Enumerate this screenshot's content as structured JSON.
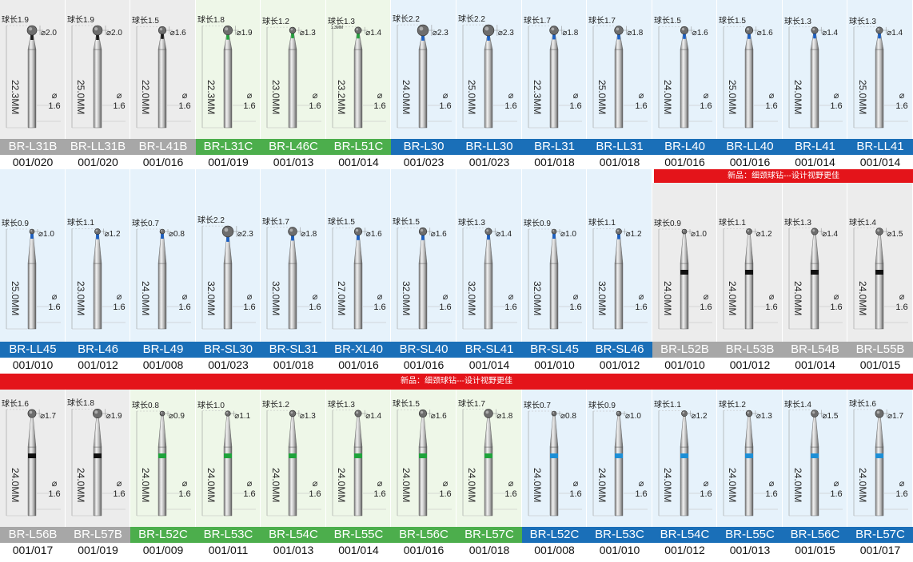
{
  "colors": {
    "gray": "#a7a7a7",
    "green": "#4cae4c",
    "blue": "#1a6fb8",
    "red_banner": "#e4141a",
    "black_ring": "#111111"
  },
  "rows": [
    {
      "items": [
        {
          "name": "BR-L31B",
          "code": "001/020",
          "group": "gray",
          "ball_len": "球长1.9",
          "head_d": "⌀2.0",
          "shank_d": "⌀ 1.6",
          "length": "22.3MM",
          "ring": "none"
        },
        {
          "name": "BR-LL31B",
          "code": "001/020",
          "group": "gray",
          "ball_len": "球长1.9",
          "head_d": "⌀2.0",
          "shank_d": "⌀ 1.6",
          "length": "25.0MM",
          "ring": "none"
        },
        {
          "name": "BR-L41B",
          "code": "001/016",
          "group": "gray",
          "ball_len": "球长1.5",
          "head_d": "⌀1.6",
          "shank_d": "⌀ 1.6",
          "length": "22.0MM",
          "ring": "none"
        },
        {
          "name": "BR-L31C",
          "code": "001/019",
          "group": "green",
          "ball_len": "球长1.8",
          "head_d": "⌀1.9",
          "shank_d": "⌀ 1.6",
          "length": "22.3MM",
          "ring": "none"
        },
        {
          "name": "BR-L46C",
          "code": "001/013",
          "group": "green",
          "ball_len": "球长1.2",
          "head_d": "⌀1.3",
          "shank_d": "⌀ 1.6",
          "length": "23.0MM",
          "ring": "none"
        },
        {
          "name": "BR-L51C",
          "code": "001/014",
          "group": "green",
          "ball_len": "球长1.3",
          "head_d": "⌀1.4",
          "shank_d": "⌀ 1.6",
          "length": "23.2MM",
          "ring": "none",
          "note": "1.3MM"
        },
        {
          "name": "BR-L30",
          "code": "001/023",
          "group": "blue",
          "ball_len": "球长2.2",
          "head_d": "⌀2.3",
          "shank_d": "⌀ 1.6",
          "length": "24.0MM",
          "ring": "none"
        },
        {
          "name": "BR-LL30",
          "code": "001/023",
          "group": "blue",
          "ball_len": "球长2.2",
          "head_d": "⌀2.3",
          "shank_d": "⌀ 1.6",
          "length": "25.0MM",
          "ring": "none"
        },
        {
          "name": "BR-L31",
          "code": "001/018",
          "group": "blue",
          "ball_len": "球长1.7",
          "head_d": "⌀1.8",
          "shank_d": "⌀ 1.6",
          "length": "22.3MM",
          "ring": "none"
        },
        {
          "name": "BR-LL31",
          "code": "001/018",
          "group": "blue",
          "ball_len": "球长1.7",
          "head_d": "⌀1.8",
          "shank_d": "⌀ 1.6",
          "length": "25.0MM",
          "ring": "none"
        },
        {
          "name": "BR-L40",
          "code": "001/016",
          "group": "blue",
          "ball_len": "球长1.5",
          "head_d": "⌀1.6",
          "shank_d": "⌀ 1.6",
          "length": "24.0MM",
          "ring": "none"
        },
        {
          "name": "BR-LL40",
          "code": "001/016",
          "group": "blue",
          "ball_len": "球长1.5",
          "head_d": "⌀1.6",
          "shank_d": "⌀ 1.6",
          "length": "25.0MM",
          "ring": "none"
        },
        {
          "name": "BR-L41",
          "code": "001/014",
          "group": "blue",
          "ball_len": "球长1.3",
          "head_d": "⌀1.4",
          "shank_d": "⌀ 1.6",
          "length": "24.0MM",
          "ring": "none"
        },
        {
          "name": "BR-LL41",
          "code": "001/014",
          "group": "blue",
          "ball_len": "球长1.3",
          "head_d": "⌀1.4",
          "shank_d": "⌀ 1.6",
          "length": "25.0MM",
          "ring": "none"
        }
      ]
    },
    {
      "items": [
        {
          "name": "BR-LL45",
          "code": "001/010",
          "group": "blue",
          "ball_len": "球长0.9",
          "head_d": "⌀1.0",
          "shank_d": "⌀ 1.6",
          "length": "25.0MM",
          "ring": "none"
        },
        {
          "name": "BR-L46",
          "code": "001/012",
          "group": "blue",
          "ball_len": "球长1.1",
          "head_d": "⌀1.2",
          "shank_d": "⌀ 1.6",
          "length": "23.0MM",
          "ring": "none"
        },
        {
          "name": "BR-L49",
          "code": "001/008",
          "group": "blue",
          "ball_len": "球长0.7",
          "head_d": "⌀0.8",
          "shank_d": "⌀ 1.6",
          "length": "24.0MM",
          "ring": "none"
        },
        {
          "name": "BR-SL30",
          "code": "001/023",
          "group": "blue",
          "ball_len": "球长2.2",
          "head_d": "⌀2.3",
          "shank_d": "⌀ 1.6",
          "length": "32.0MM",
          "ring": "none"
        },
        {
          "name": "BR-SL31",
          "code": "001/018",
          "group": "blue",
          "ball_len": "球长1.7",
          "head_d": "⌀1.8",
          "shank_d": "⌀ 1.6",
          "length": "32.0MM",
          "ring": "none"
        },
        {
          "name": "BR-XL40",
          "code": "001/016",
          "group": "blue",
          "ball_len": "球长1.5",
          "head_d": "⌀1.6",
          "shank_d": "⌀ 1.6",
          "length": "27.0MM",
          "ring": "none"
        },
        {
          "name": "BR-SL40",
          "code": "001/016",
          "group": "blue",
          "ball_len": "球长1.5",
          "head_d": "⌀1.6",
          "shank_d": "⌀ 1.6",
          "length": "32.0MM",
          "ring": "none"
        },
        {
          "name": "BR-SL41",
          "code": "001/014",
          "group": "blue",
          "ball_len": "球长1.3",
          "head_d": "⌀1.4",
          "shank_d": "⌀ 1.6",
          "length": "32.0MM",
          "ring": "none"
        },
        {
          "name": "BR-SL45",
          "code": "001/010",
          "group": "blue",
          "ball_len": "球长0.9",
          "head_d": "⌀1.0",
          "shank_d": "⌀ 1.6",
          "length": "32.0MM",
          "ring": "none"
        },
        {
          "name": "BR-SL46",
          "code": "001/012",
          "group": "blue",
          "ball_len": "球长1.1",
          "head_d": "⌀1.2",
          "shank_d": "⌀ 1.6",
          "length": "32.0MM",
          "ring": "none"
        },
        {
          "name": "BR-L52B",
          "code": "001/010",
          "group": "gray",
          "ball_len": "球长0.9",
          "head_d": "⌀1.0",
          "shank_d": "⌀ 1.6",
          "length": "24.0MM",
          "ring": "black"
        },
        {
          "name": "BR-L53B",
          "code": "001/012",
          "group": "gray",
          "ball_len": "球长1.1",
          "head_d": "⌀1.2",
          "shank_d": "⌀ 1.6",
          "length": "24.0MM",
          "ring": "black"
        },
        {
          "name": "BR-L54B",
          "code": "001/014",
          "group": "gray",
          "ball_len": "球长1.3",
          "head_d": "⌀1.4",
          "shank_d": "⌀ 1.6",
          "length": "24.0MM",
          "ring": "black"
        },
        {
          "name": "BR-L55B",
          "code": "001/015",
          "group": "gray",
          "ball_len": "球长1.4",
          "head_d": "⌀1.5",
          "shank_d": "⌀ 1.6",
          "length": "24.0MM",
          "ring": "black"
        }
      ]
    },
    {
      "items": [
        {
          "name": "BR-L56B",
          "code": "001/017",
          "group": "gray",
          "ball_len": "球长1.6",
          "head_d": "⌀1.7",
          "shank_d": "⌀ 1.6",
          "length": "24.0MM",
          "ring": "black"
        },
        {
          "name": "BR-L57B",
          "code": "001/019",
          "group": "gray",
          "ball_len": "球长1.8",
          "head_d": "⌀1.9",
          "shank_d": "⌀ 1.6",
          "length": "24.0MM",
          "ring": "black"
        },
        {
          "name": "BR-L52C",
          "code": "001/009",
          "group": "green",
          "ball_len": "球长0.8",
          "head_d": "⌀0.9",
          "shank_d": "⌀ 1.6",
          "length": "24.0MM",
          "ring": "green"
        },
        {
          "name": "BR-L53C",
          "code": "001/011",
          "group": "green",
          "ball_len": "球长1.0",
          "head_d": "⌀1.1",
          "shank_d": "⌀ 1.6",
          "length": "24.0MM",
          "ring": "green"
        },
        {
          "name": "BR-L54C",
          "code": "001/013",
          "group": "green",
          "ball_len": "球长1.2",
          "head_d": "⌀1.3",
          "shank_d": "⌀ 1.6",
          "length": "24.0MM",
          "ring": "green"
        },
        {
          "name": "BR-L55C",
          "code": "001/014",
          "group": "green",
          "ball_len": "球长1.3",
          "head_d": "⌀1.4",
          "shank_d": "⌀ 1.6",
          "length": "24.0MM",
          "ring": "green"
        },
        {
          "name": "BR-L56C",
          "code": "001/016",
          "group": "green",
          "ball_len": "球长1.5",
          "head_d": "⌀1.6",
          "shank_d": "⌀ 1.6",
          "length": "24.0MM",
          "ring": "green"
        },
        {
          "name": "BR-L57C",
          "code": "001/018",
          "group": "green",
          "ball_len": "球长1.7",
          "head_d": "⌀1.8",
          "shank_d": "⌀ 1.6",
          "length": "24.0MM",
          "ring": "green"
        },
        {
          "name": "BR-L52C",
          "code": "001/008",
          "group": "blue",
          "ball_len": "球长0.7",
          "head_d": "⌀0.8",
          "shank_d": "⌀ 1.6",
          "length": "24.0MM",
          "ring": "blue"
        },
        {
          "name": "BR-L53C",
          "code": "001/010",
          "group": "blue",
          "ball_len": "球长0.9",
          "head_d": "⌀1.0",
          "shank_d": "⌀ 1.6",
          "length": "24.0MM",
          "ring": "blue"
        },
        {
          "name": "BR-L54C",
          "code": "001/012",
          "group": "blue",
          "ball_len": "球长1.1",
          "head_d": "⌀1.2",
          "shank_d": "⌀ 1.6",
          "length": "24.0MM",
          "ring": "blue"
        },
        {
          "name": "BR-L55C",
          "code": "001/013",
          "group": "blue",
          "ball_len": "球长1.2",
          "head_d": "⌀1.3",
          "shank_d": "⌀ 1.6",
          "length": "24.0MM",
          "ring": "blue"
        },
        {
          "name": "BR-L56C",
          "code": "001/015",
          "group": "blue",
          "ball_len": "球长1.4",
          "head_d": "⌀1.5",
          "shank_d": "⌀ 1.6",
          "length": "24.0MM",
          "ring": "blue"
        },
        {
          "name": "BR-L57C",
          "code": "001/017",
          "group": "blue",
          "ball_len": "球长1.6",
          "head_d": "⌀1.7",
          "shank_d": "⌀ 1.6",
          "length": "24.0MM",
          "ring": "blue"
        }
      ]
    }
  ],
  "banners": {
    "top_right": "新品：细颈球钻---设计视野更佳",
    "middle": "新品：细颈球钻---设计视野更佳"
  }
}
